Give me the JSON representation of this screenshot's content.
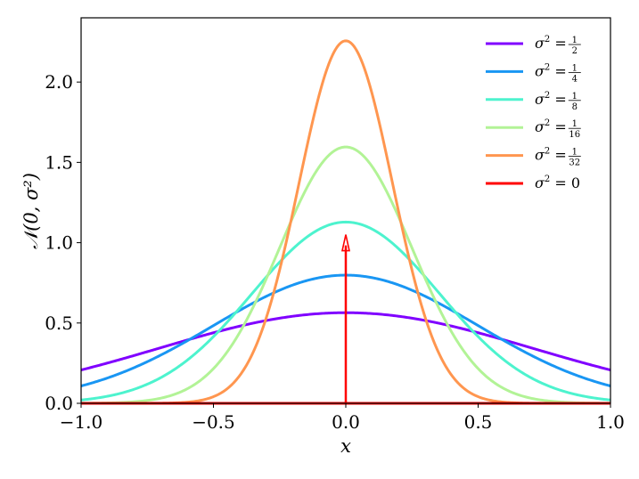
{
  "chart_data": {
    "type": "line",
    "title": "",
    "xlabel": "x",
    "ylabel": "𝒩(0, σ²)",
    "xlim": [
      -1.0,
      1.0
    ],
    "ylim": [
      0.0,
      2.4
    ],
    "x_ticks": [
      -1.0,
      -0.5,
      0.0,
      0.5,
      1.0
    ],
    "x_tick_labels": [
      "−1.0",
      "−0.5",
      "0.0",
      "0.5",
      "1.0"
    ],
    "y_ticks": [
      0.0,
      0.5,
      1.0,
      1.5,
      2.0
    ],
    "y_tick_labels": [
      "0.0",
      "0.5",
      "1.0",
      "1.5",
      "2.0"
    ],
    "legend_position": "top-right",
    "grid": false,
    "series": [
      {
        "name": "σ² = 1/2",
        "prefix": "σ",
        "sup": "2",
        "eq": " = ",
        "num": "1",
        "den": "2",
        "variance": 0.5,
        "peak": 0.564,
        "color": "#8000ff",
        "kind": "gaussian"
      },
      {
        "name": "σ² = 1/4",
        "prefix": "σ",
        "sup": "2",
        "eq": " = ",
        "num": "1",
        "den": "4",
        "variance": 0.25,
        "peak": 0.798,
        "color": "#1996f3",
        "kind": "gaussian"
      },
      {
        "name": "σ² = 1/8",
        "prefix": "σ",
        "sup": "2",
        "eq": " = ",
        "num": "1",
        "den": "8",
        "variance": 0.125,
        "peak": 1.128,
        "color": "#4df3ce",
        "kind": "gaussian"
      },
      {
        "name": "σ² = 1/16",
        "prefix": "σ",
        "sup": "2",
        "eq": " = ",
        "num": "1",
        "den": "16",
        "variance": 0.0625,
        "peak": 1.596,
        "color": "#b2f396",
        "kind": "gaussian"
      },
      {
        "name": "σ² = 1/32",
        "prefix": "σ",
        "sup": "2",
        "eq": " = ",
        "num": "1",
        "den": "32",
        "variance": 0.03125,
        "peak": 2.257,
        "color": "#ff964f",
        "kind": "gaussian"
      },
      {
        "name": "σ² = 0",
        "prefix": "σ",
        "sup": "2",
        "eq": " = 0",
        "num": "",
        "den": "",
        "variance": 0,
        "peak": 1.05,
        "color": "#ff0000",
        "kind": "delta"
      }
    ]
  }
}
